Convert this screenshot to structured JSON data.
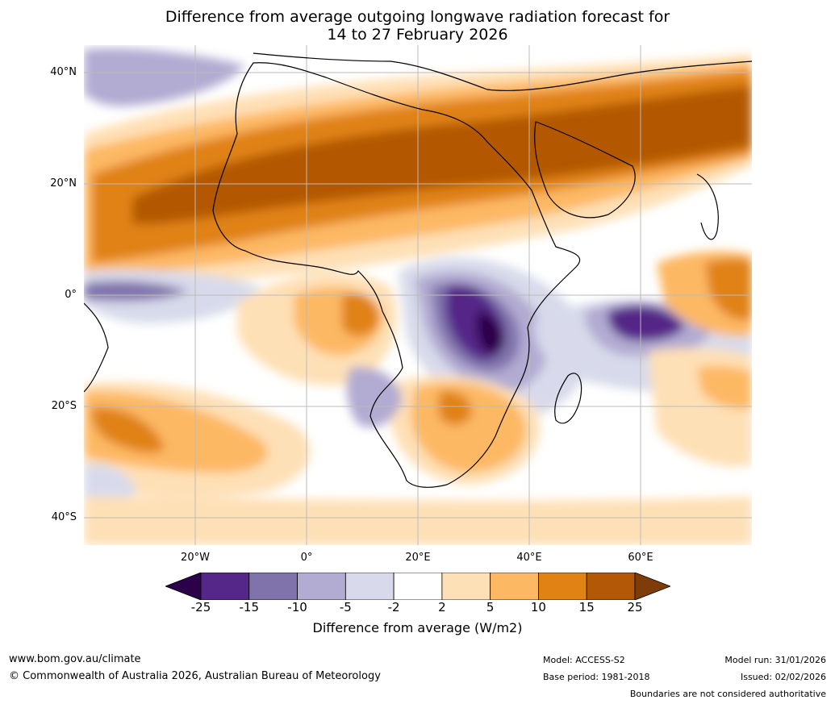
{
  "title": {
    "line1": "Difference from average outgoing longwave radiation forecast for",
    "line2": "14 to 27 February 2026"
  },
  "map": {
    "region": "Africa and surrounding oceans",
    "lat_labels": [
      "40°N",
      "20°N",
      "0°",
      "20°S",
      "40°S"
    ],
    "lon_labels": [
      "20°W",
      "0°",
      "20°E",
      "40°E",
      "60°E"
    ]
  },
  "colorbar": {
    "ticks": [
      "-25",
      "-15",
      "-10",
      "-5",
      "-2",
      "2",
      "5",
      "10",
      "15",
      "25"
    ],
    "colors": [
      "#2d004b",
      "#542788",
      "#8073ac",
      "#b2abd2",
      "#d8daeb",
      "#ffffff",
      "#fee0b6",
      "#fdb863",
      "#e08214",
      "#b35806",
      "#7f3b08"
    ],
    "label": "Difference from average (W/m2)"
  },
  "footer": {
    "url": "www.bom.gov.au/climate",
    "copyright": "© Commonwealth of Australia 2026, Australian Bureau of Meteorology",
    "model": "Model: ACCESS-S2",
    "base_period": "Base period: 1981-2018",
    "model_run": "Model run: 31/01/2026",
    "issued": "Issued: 02/02/2026",
    "disclaimer": "Boundaries are not considered authoritative"
  }
}
